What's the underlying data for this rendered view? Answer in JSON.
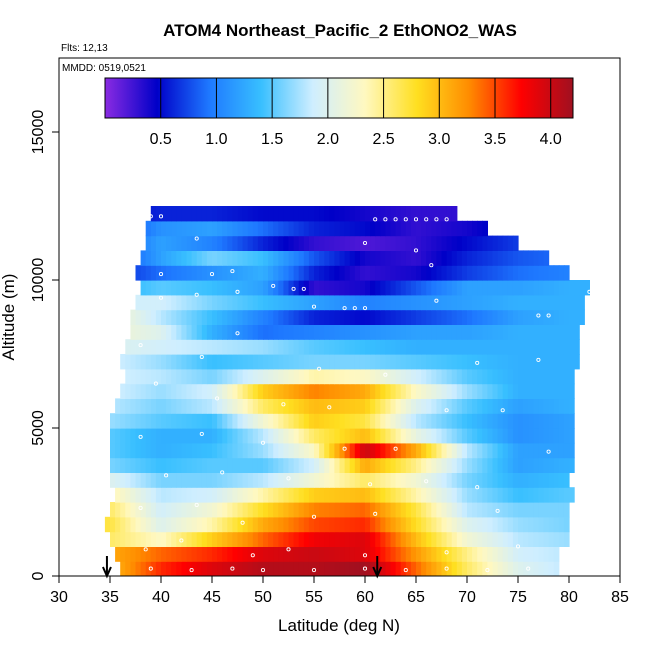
{
  "chart_data": {
    "type": "heatmap",
    "title": "ATOM4 Northeast_Pacific_2 EthONO2_WAS",
    "flights_note": "Flts: 12,13",
    "dates_note": "MMDD: 0519,0521",
    "xlabel": "Latitude (deg N)",
    "ylabel": "Altitude (m)",
    "xlim": [
      30,
      85
    ],
    "ylim": [
      0,
      17500
    ],
    "x_ticks": [
      "30",
      "35",
      "40",
      "45",
      "50",
      "55",
      "60",
      "65",
      "70",
      "75",
      "80",
      "85"
    ],
    "y_ticks": [
      "0",
      "5000",
      "10000",
      "15000"
    ],
    "grid": false,
    "colorbar": {
      "placement": "top",
      "range": [
        0,
        4.2
      ],
      "ticks": [
        "0.5",
        "1.0",
        "1.5",
        "2.0",
        "2.5",
        "3.0",
        "3.5",
        "4.0"
      ],
      "stops": [
        "#8a2be2",
        "#0000c8",
        "#1e78ff",
        "#38bfff",
        "#cfeeff",
        "#fff8c0",
        "#ffdf20",
        "#ff8c00",
        "#ff0000",
        "#a01020"
      ]
    },
    "altitude_bins_m": [
      0,
      500,
      1000,
      1500,
      2000,
      2500,
      3000,
      3500,
      4000,
      4500,
      5000,
      5500,
      6000,
      6500,
      7000,
      7500,
      8000,
      8500,
      9000,
      9500,
      10000,
      10500,
      11000,
      11500,
      12000,
      12500
    ],
    "layer_lat_ranges": [
      [
        36.0,
        79.0
      ],
      [
        35.5,
        79.0
      ],
      [
        35.0,
        80.0
      ],
      [
        34.5,
        80.0
      ],
      [
        35.0,
        80.0
      ],
      [
        35.5,
        80.5
      ],
      [
        35.0,
        80.0
      ],
      [
        35.0,
        80.5
      ],
      [
        35.0,
        80.5
      ],
      [
        35.0,
        80.5
      ],
      [
        35.0,
        80.5
      ],
      [
        35.5,
        80.5
      ],
      [
        36.0,
        80.5
      ],
      [
        36.5,
        80.5
      ],
      [
        36.0,
        81.0
      ],
      [
        36.5,
        81.0
      ],
      [
        37.0,
        81.0
      ],
      [
        37.0,
        81.5
      ],
      [
        37.5,
        81.5
      ],
      [
        38.0,
        82.0
      ],
      [
        37.5,
        80.0
      ],
      [
        38.0,
        78.0
      ],
      [
        38.5,
        75.0
      ],
      [
        38.5,
        72.0
      ],
      [
        39.0,
        69.0
      ]
    ],
    "profile_nodes_lat": [
      35,
      40,
      45,
      50,
      55,
      60,
      65,
      70,
      75,
      80
    ],
    "layer_values": [
      [
        3.0,
        3.6,
        3.9,
        4.1,
        4.1,
        4.2,
        3.4,
        2.6,
        2.0,
        1.8
      ],
      [
        3.1,
        3.4,
        3.6,
        3.9,
        4.0,
        3.9,
        3.2,
        2.5,
        1.9,
        1.8
      ],
      [
        2.6,
        2.3,
        2.9,
        3.4,
        3.8,
        3.9,
        3.0,
        2.2,
        1.8,
        1.7
      ],
      [
        2.7,
        2.0,
        2.4,
        3.1,
        3.5,
        3.6,
        2.8,
        2.0,
        1.7,
        1.6
      ],
      [
        2.6,
        1.9,
        2.2,
        2.8,
        3.3,
        3.4,
        2.7,
        1.8,
        1.6,
        1.6
      ],
      [
        2.4,
        1.8,
        1.9,
        2.4,
        2.9,
        3.0,
        2.4,
        1.7,
        1.4,
        1.5
      ],
      [
        2.0,
        1.6,
        1.6,
        1.8,
        2.2,
        2.6,
        2.2,
        1.6,
        1.3,
        1.4
      ],
      [
        1.6,
        1.4,
        1.5,
        1.5,
        1.9,
        3.1,
        2.5,
        1.7,
        1.2,
        1.3
      ],
      [
        1.5,
        1.3,
        1.4,
        1.7,
        2.3,
        4.0,
        3.1,
        1.8,
        1.2,
        1.2
      ],
      [
        1.5,
        1.3,
        1.3,
        1.8,
        2.6,
        3.0,
        2.1,
        1.5,
        1.1,
        1.2
      ],
      [
        1.7,
        1.5,
        1.4,
        2.2,
        2.9,
        2.7,
        1.8,
        1.4,
        1.1,
        1.2
      ],
      [
        1.8,
        1.6,
        1.8,
        2.6,
        3.0,
        2.9,
        2.0,
        1.5,
        1.2,
        1.3
      ],
      [
        1.9,
        1.7,
        1.9,
        2.9,
        3.3,
        3.1,
        2.3,
        1.7,
        1.3,
        1.3
      ],
      [
        1.9,
        1.8,
        1.6,
        2.0,
        2.4,
        2.3,
        1.9,
        1.5,
        1.3,
        1.3
      ],
      [
        1.9,
        1.7,
        1.4,
        1.5,
        1.6,
        1.6,
        1.5,
        1.4,
        1.3,
        1.3
      ],
      [
        2.0,
        1.9,
        1.8,
        1.7,
        1.5,
        1.4,
        1.3,
        1.3,
        1.3,
        1.3
      ],
      [
        2.2,
        2.0,
        1.3,
        0.9,
        1.0,
        1.1,
        1.2,
        1.2,
        1.3,
        1.3
      ],
      [
        2.3,
        1.8,
        1.4,
        1.0,
        0.6,
        0.5,
        0.7,
        0.9,
        1.2,
        1.3
      ],
      [
        1.9,
        1.9,
        1.6,
        1.4,
        1.2,
        1.0,
        1.1,
        1.2,
        1.3,
        1.3
      ],
      [
        1.3,
        1.5,
        1.4,
        1.2,
        0.3,
        0.4,
        0.8,
        1.2,
        1.2,
        1.3
      ],
      [
        0.6,
        0.9,
        1.1,
        1.3,
        0.6,
        0.3,
        0.4,
        0.7,
        0.9,
        1.0
      ],
      [
        0.6,
        1.2,
        1.6,
        1.4,
        0.8,
        0.4,
        0.3,
        0.6,
        0.8,
        0.9
      ],
      [
        0.7,
        1.2,
        1.0,
        0.6,
        0.3,
        0.2,
        0.3,
        0.5,
        0.7,
        0.8
      ],
      [
        0.6,
        1.1,
        1.2,
        0.9,
        0.6,
        0.5,
        0.3,
        0.4,
        0.6,
        0.7
      ],
      [
        0.5,
        0.6,
        0.6,
        0.5,
        0.5,
        0.4,
        0.3,
        0.3,
        0.5,
        0.6
      ]
    ],
    "sample_points": [
      [
        39.0,
        12150
      ],
      [
        40.0,
        12150
      ],
      [
        61.0,
        12050
      ],
      [
        62.0,
        12050
      ],
      [
        63.0,
        12050
      ],
      [
        64.0,
        12050
      ],
      [
        65.0,
        12050
      ],
      [
        66.0,
        12050
      ],
      [
        67.0,
        12050
      ],
      [
        68.0,
        12050
      ],
      [
        43.5,
        11400
      ],
      [
        60.0,
        11250
      ],
      [
        66.5,
        10500
      ],
      [
        65.0,
        11000
      ],
      [
        40.0,
        10200
      ],
      [
        45.0,
        10200
      ],
      [
        47.0,
        10300
      ],
      [
        51.0,
        9800
      ],
      [
        53.0,
        9700
      ],
      [
        54.0,
        9700
      ],
      [
        55.0,
        9100
      ],
      [
        58.0,
        9050
      ],
      [
        59.0,
        9050
      ],
      [
        60.0,
        9050
      ],
      [
        40.0,
        9400
      ],
      [
        43.5,
        9500
      ],
      [
        47.5,
        9600
      ],
      [
        67.0,
        9300
      ],
      [
        77.0,
        8800
      ],
      [
        78.0,
        8800
      ],
      [
        82.0,
        9600
      ],
      [
        38.0,
        7800
      ],
      [
        44.0,
        7400
      ],
      [
        47.5,
        8200
      ],
      [
        55.5,
        7000
      ],
      [
        62.0,
        6800
      ],
      [
        71.0,
        7200
      ],
      [
        77.0,
        7300
      ],
      [
        39.5,
        6500
      ],
      [
        45.5,
        6000
      ],
      [
        52.0,
        5800
      ],
      [
        56.5,
        5700
      ],
      [
        68.0,
        5600
      ],
      [
        73.5,
        5600
      ],
      [
        38.0,
        4700
      ],
      [
        44.0,
        4800
      ],
      [
        50.0,
        4500
      ],
      [
        58.0,
        4300
      ],
      [
        63.0,
        4300
      ],
      [
        78.0,
        4200
      ],
      [
        40.5,
        3400
      ],
      [
        46.0,
        3500
      ],
      [
        52.5,
        3300
      ],
      [
        60.5,
        3100
      ],
      [
        66.0,
        3200
      ],
      [
        71.0,
        3000
      ],
      [
        38.0,
        2300
      ],
      [
        43.5,
        2400
      ],
      [
        48.0,
        1800
      ],
      [
        55.0,
        2000
      ],
      [
        61.0,
        2100
      ],
      [
        73.0,
        2200
      ],
      [
        38.5,
        900
      ],
      [
        42.0,
        1200
      ],
      [
        49.0,
        700
      ],
      [
        52.5,
        900
      ],
      [
        60.0,
        700
      ],
      [
        68.0,
        800
      ],
      [
        75.0,
        1000
      ],
      [
        39.0,
        250
      ],
      [
        43.0,
        200
      ],
      [
        47.0,
        250
      ],
      [
        50.0,
        200
      ],
      [
        55.0,
        200
      ],
      [
        60.0,
        250
      ],
      [
        64.0,
        200
      ],
      [
        68.0,
        250
      ],
      [
        72.0,
        200
      ],
      [
        76.0,
        250
      ]
    ],
    "markers_lat": [
      34.7,
      61.2
    ]
  }
}
